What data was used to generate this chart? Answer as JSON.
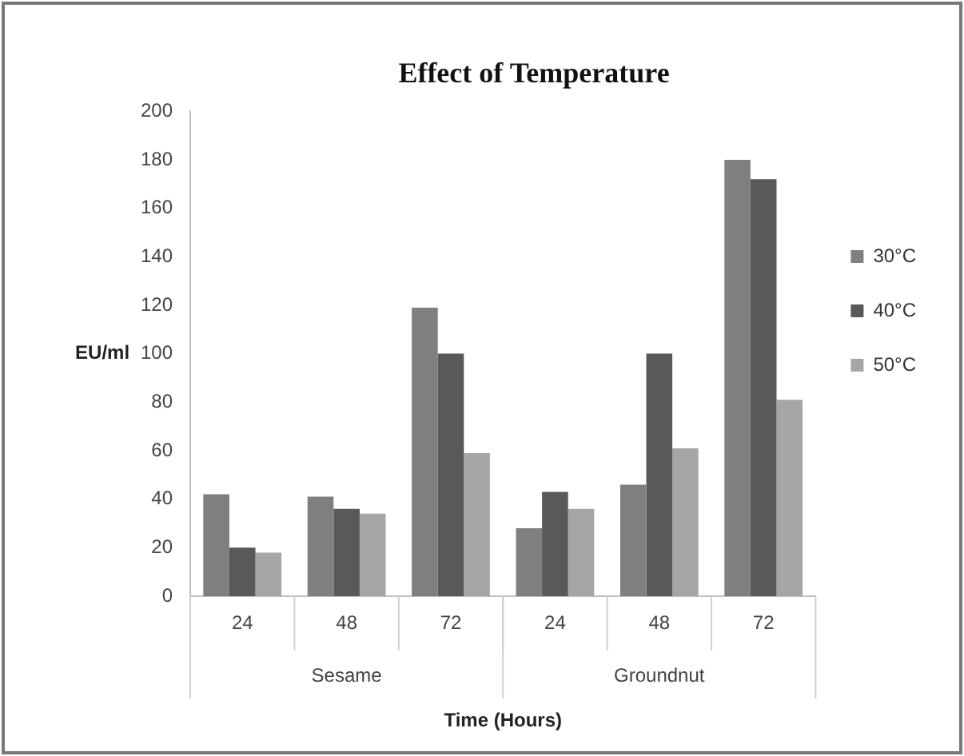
{
  "chart_data": {
    "type": "bar",
    "title": "Effect of Temperature",
    "xlabel": "Time (Hours)",
    "ylabel": "EU/ml",
    "categories": [
      "24",
      "48",
      "72",
      "24",
      "48",
      "72"
    ],
    "annotations": [
      "Sesame",
      "Groundnut"
    ],
    "series": [
      {
        "name": "30°C",
        "color": "#7f7f7f",
        "values": [
          42,
          41,
          119,
          28,
          46,
          180
        ]
      },
      {
        "name": "40°C",
        "color": "#595959",
        "values": [
          20,
          36,
          100,
          43,
          100,
          172
        ]
      },
      {
        "name": "50°C",
        "color": "#a6a6a6",
        "values": [
          18,
          34,
          59,
          36,
          61,
          81
        ]
      }
    ],
    "ylim": [
      0,
      200
    ],
    "yticks": [
      0,
      20,
      40,
      60,
      80,
      100,
      120,
      140,
      160,
      180,
      200
    ],
    "grid": false,
    "legend": "right"
  }
}
